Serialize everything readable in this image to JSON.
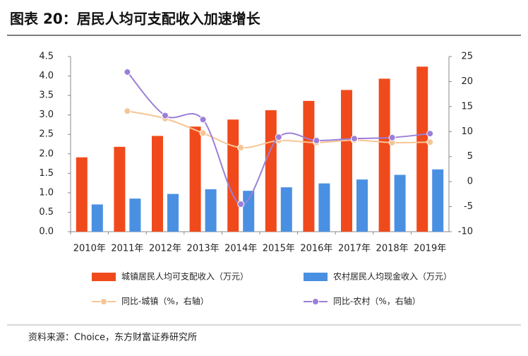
{
  "chart_data": {
    "type": "bar",
    "title": "图表 20：居民人均可支配收入加速增长",
    "source": "资料来源：Choice，东方财富证券研究所",
    "categories": [
      "2010年",
      "2011年",
      "2012年",
      "2013年",
      "2014年",
      "2015年",
      "2016年",
      "2017年",
      "2018年",
      "2019年"
    ],
    "series": [
      {
        "name": "城镇居民人均可支配收入（万元）",
        "type": "bar",
        "color": "#f04a1c",
        "values": [
          1.91,
          2.18,
          2.46,
          2.7,
          2.88,
          3.12,
          3.36,
          3.64,
          3.93,
          4.24
        ]
      },
      {
        "name": "农村居民人均现金收入（万元）",
        "type": "bar",
        "color": "#4a90e2",
        "values": [
          0.7,
          0.85,
          0.97,
          1.09,
          1.05,
          1.14,
          1.24,
          1.34,
          1.46,
          1.6
        ]
      },
      {
        "name": "同比-城镇（%，右轴）",
        "type": "line",
        "axis": "y2",
        "color": "#f7c594",
        "values": [
          null,
          14.1,
          12.6,
          9.7,
          6.8,
          8.2,
          7.8,
          8.3,
          7.8,
          7.9
        ]
      },
      {
        "name": "同比-农村（%，右轴）",
        "type": "line",
        "axis": "y2",
        "color": "#9c7fd8",
        "values": [
          null,
          21.9,
          13.2,
          12.4,
          -4.5,
          8.9,
          8.2,
          8.6,
          8.8,
          9.6
        ]
      }
    ],
    "ylim": [
      0,
      4.5
    ],
    "yticks": [
      {
        "value": 0,
        "label": "0.0"
      },
      0.5,
      {
        "value": 1,
        "label": "1.0"
      },
      1.5,
      {
        "value": 2,
        "label": "2.0"
      },
      2.5,
      {
        "value": 3,
        "label": "3.0"
      },
      3.5,
      {
        "value": 4,
        "label": "4.0"
      },
      4.5
    ],
    "y2lim": [
      -10,
      25
    ],
    "y2ticks": [
      -10,
      -5,
      0,
      5,
      10,
      15,
      20,
      25
    ]
  }
}
